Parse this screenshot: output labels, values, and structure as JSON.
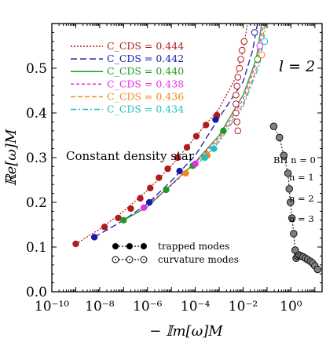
{
  "chart_data": {
    "type": "scatter",
    "xlabel": "− 𝕀m[ω]M",
    "ylabel": "ℝe[ω]M",
    "xscale": "log",
    "xlim": [
      1e-10,
      20
    ],
    "ylim": [
      0.0,
      0.6
    ],
    "xticks": [
      1e-10,
      1e-08,
      1e-06,
      0.0001,
      0.01,
      1
    ],
    "xtick_labels": [
      "10⁻¹⁰",
      "10⁻⁸",
      "10⁻⁶",
      "10⁻⁴",
      "10⁻²",
      "10⁰"
    ],
    "yticks": [
      0.0,
      0.1,
      0.2,
      0.3,
      0.4,
      0.5
    ],
    "ytick_labels": [
      "0.0",
      "0.1",
      "0.2",
      "0.3",
      "0.4",
      "0.5"
    ],
    "annotations": {
      "l_label": "l = 2",
      "star_label": "Constant density star",
      "bh_labels": [
        "BH n = 0",
        "n = 1",
        "n = 2",
        "n = 3"
      ],
      "legend_trapped": "trapped modes",
      "legend_curvature": "curvature modes"
    },
    "series": [
      {
        "name": "C_CDS = 0.444",
        "color": "#b01c1c",
        "dash": "2,2",
        "trapped": [
          [
            1e-09,
            0.107
          ],
          [
            1.6e-08,
            0.145
          ],
          [
            6e-08,
            0.165
          ],
          [
            2e-07,
            0.186
          ],
          [
            5e-07,
            0.209
          ],
          [
            1.3e-06,
            0.232
          ],
          [
            3e-06,
            0.255
          ],
          [
            7e-06,
            0.275
          ],
          [
            1.8e-05,
            0.3
          ],
          [
            4.5e-05,
            0.323
          ],
          [
            0.00011,
            0.348
          ],
          [
            0.00028,
            0.373
          ],
          [
            0.0008,
            0.395
          ]
        ],
        "curve": [
          [
            1e-09,
            0.107
          ],
          [
            1e-08,
            0.14
          ],
          [
            1e-07,
            0.18
          ],
          [
            1e-06,
            0.227
          ],
          [
            1e-05,
            0.282
          ],
          [
            0.0001,
            0.346
          ],
          [
            0.001,
            0.41
          ],
          [
            0.005,
            0.48
          ],
          [
            0.01,
            0.54
          ],
          [
            0.015,
            0.6
          ]
        ],
        "curvature": [
          [
            0.006,
            0.36
          ],
          [
            0.0055,
            0.38
          ],
          [
            0.005,
            0.4
          ],
          [
            0.005,
            0.42
          ],
          [
            0.005,
            0.44
          ],
          [
            0.0055,
            0.46
          ],
          [
            0.006,
            0.48
          ],
          [
            0.007,
            0.5
          ],
          [
            0.008,
            0.52
          ],
          [
            0.009,
            0.54
          ],
          [
            0.011,
            0.56
          ]
        ]
      },
      {
        "name": "C_CDS = 0.442",
        "color": "#1a1aa8",
        "dash": "8,4",
        "trapped": [
          [
            6e-09,
            0.122
          ],
          [
            1.2e-06,
            0.2
          ],
          [
            2.2e-05,
            0.27
          ],
          [
            0.0007,
            0.385
          ]
        ],
        "curve": [
          [
            6e-09,
            0.122
          ],
          [
            1e-07,
            0.16
          ],
          [
            1e-06,
            0.197
          ],
          [
            1e-05,
            0.248
          ],
          [
            0.0001,
            0.305
          ],
          [
            0.001,
            0.39
          ],
          [
            0.01,
            0.47
          ],
          [
            0.025,
            0.54
          ],
          [
            0.04,
            0.6
          ]
        ],
        "curvature": [
          [
            0.03,
            0.58
          ]
        ]
      },
      {
        "name": "C_CDS = 0.440",
        "color": "#1e9a1e",
        "dash": "",
        "trapped": [
          [
            1e-07,
            0.16
          ],
          [
            6e-06,
            0.228
          ],
          [
            8e-05,
            0.282
          ],
          [
            0.0015,
            0.36
          ]
        ],
        "curve": [
          [
            1e-07,
            0.16
          ],
          [
            1e-06,
            0.19
          ],
          [
            1e-05,
            0.24
          ],
          [
            0.0001,
            0.29
          ],
          [
            0.001,
            0.35
          ],
          [
            0.01,
            0.44
          ],
          [
            0.035,
            0.52
          ],
          [
            0.06,
            0.6
          ]
        ],
        "curvature": [
          [
            0.04,
            0.52
          ]
        ]
      },
      {
        "name": "C_CDS = 0.438",
        "color": "#e62ee6",
        "dash": "4,3",
        "trapped": [
          [
            7e-07,
            0.188
          ],
          [
            0.0001,
            0.286
          ]
        ],
        "curve": [
          [
            7e-07,
            0.188
          ],
          [
            1e-05,
            0.238
          ],
          [
            0.0001,
            0.288
          ],
          [
            0.001,
            0.345
          ],
          [
            0.01,
            0.43
          ],
          [
            0.04,
            0.52
          ],
          [
            0.07,
            0.6
          ]
        ],
        "curvature": [
          [
            0.05,
            0.55
          ]
        ]
      },
      {
        "name": "C_CDS = 0.436",
        "color": "#f0871e",
        "dash": "6,3",
        "trapped": [
          [
            0.00032,
            0.305
          ],
          [
            4e-05,
            0.265
          ]
        ],
        "curve": [
          [
            2e-05,
            0.255
          ],
          [
            0.0001,
            0.285
          ],
          [
            0.001,
            0.34
          ],
          [
            0.01,
            0.42
          ],
          [
            0.05,
            0.52
          ],
          [
            0.08,
            0.6
          ]
        ],
        "curvature": [
          [
            0.06,
            0.53
          ]
        ]
      },
      {
        "name": "C_CDS = 0.434",
        "color": "#20c0c0",
        "dash": "7,3,2,3",
        "trapped": [
          [
            0.00025,
            0.3
          ],
          [
            0.0006,
            0.32
          ]
        ],
        "curve": [
          [
            0.00015,
            0.29
          ],
          [
            0.001,
            0.335
          ],
          [
            0.01,
            0.415
          ],
          [
            0.05,
            0.51
          ],
          [
            0.09,
            0.6
          ]
        ],
        "curvature": [
          [
            0.08,
            0.56
          ]
        ]
      },
      {
        "name": "BH",
        "color": "#222222",
        "dash": "2,2",
        "points": [
          [
            0.19,
            0.37
          ],
          [
            0.33,
            0.345
          ],
          [
            0.5,
            0.305
          ],
          [
            0.75,
            0.265
          ],
          [
            0.85,
            0.23
          ],
          [
            0.95,
            0.2
          ],
          [
            1.1,
            0.165
          ],
          [
            1.3,
            0.13
          ],
          [
            1.5,
            0.093
          ],
          [
            1.65,
            0.075
          ],
          [
            1.9,
            0.08
          ],
          [
            2.2,
            0.082
          ],
          [
            2.6,
            0.08
          ],
          [
            3.2,
            0.078
          ],
          [
            4,
            0.075
          ],
          [
            5,
            0.072
          ],
          [
            6.5,
            0.068
          ],
          [
            8,
            0.064
          ],
          [
            10,
            0.058
          ],
          [
            13,
            0.05
          ]
        ]
      }
    ]
  }
}
